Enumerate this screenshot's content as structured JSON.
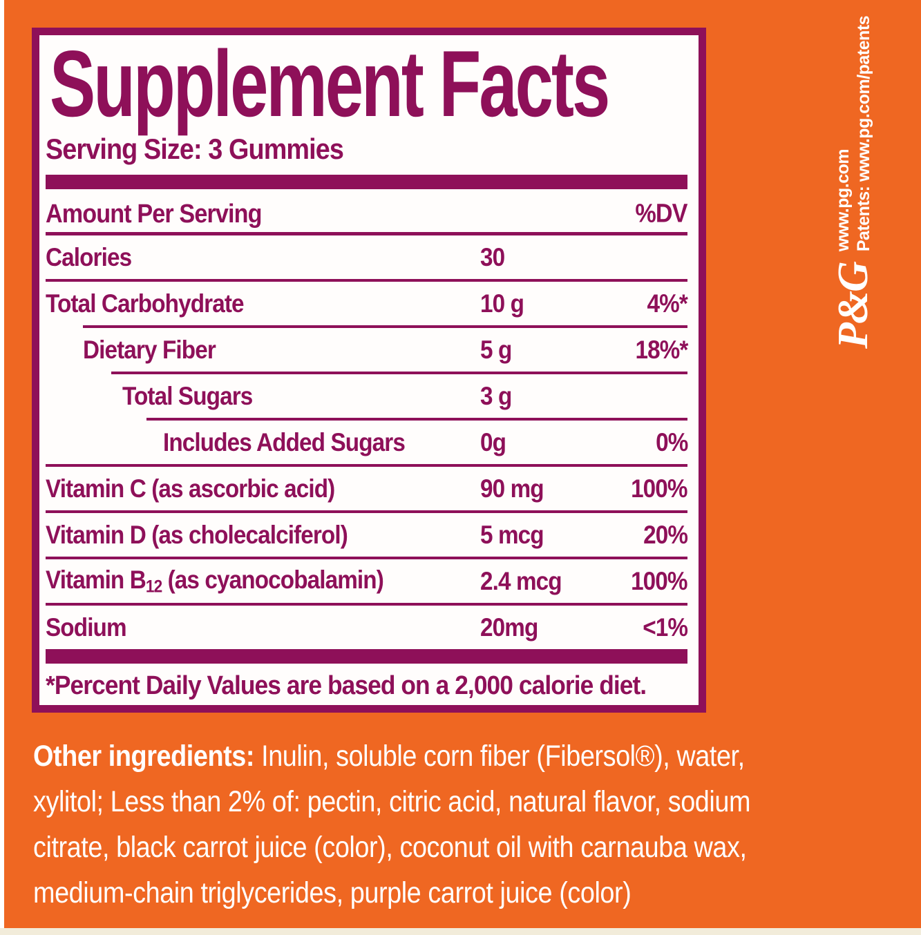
{
  "colors": {
    "background_orange": "#EF6722",
    "label_magenta": "#8E1059",
    "panel_white": "#FFFDFC",
    "text_white": "#FFFFFF",
    "bottom_strip_cream": "#F2ECDA"
  },
  "label": {
    "title": "Supplement Facts",
    "serving_size": "Serving Size: 3 Gummies",
    "columns": {
      "amount_header": "Amount Per Serving",
      "dv_header": "%DV"
    },
    "rows": [
      {
        "label": "Calories",
        "amount": "30",
        "dv": "",
        "label_indent": 0,
        "divider_indent": 0
      },
      {
        "label": "Total Carbohydrate",
        "amount": "10 g",
        "dv": "4%*",
        "label_indent": 0,
        "divider_indent": 0
      },
      {
        "label": "Dietary Fiber",
        "amount": "5 g",
        "dv": "18%*",
        "label_indent": 54,
        "divider_indent": 54
      },
      {
        "label": "Total Sugars",
        "amount": "3 g",
        "dv": "",
        "label_indent": 111,
        "divider_indent": 95
      },
      {
        "label": "Includes Added Sugars",
        "amount": "0g",
        "dv": "0%",
        "label_indent": 170,
        "divider_indent": 146
      },
      {
        "label": "Vitamin C (as ascorbic acid)",
        "amount": "90 mg",
        "dv": "100%",
        "label_indent": 0,
        "divider_indent": 0
      },
      {
        "label": "Vitamin D (as cholecalciferol)",
        "amount": "5 mcg",
        "dv": "20%",
        "label_indent": 0,
        "divider_indent": 0
      },
      {
        "label_pre": "Vitamin B",
        "label_sub": "12",
        "label_post": " (as cyanocobalamin)",
        "amount": "2.4 mcg",
        "dv": "100%",
        "label_indent": 0,
        "divider_indent": 0
      },
      {
        "label": "Sodium",
        "amount": "20mg",
        "dv": "<1%",
        "label_indent": 0,
        "divider_indent": 0
      }
    ],
    "footnote": "*Percent Daily Values are based on a 2,000 calorie diet."
  },
  "ingredients": {
    "lead": "Other ingredients:",
    "line1_rest": " Inulin, soluble corn fiber (Fibersol®), water,",
    "lines": [
      "xylitol; Less than 2% of: pectin, citric acid, natural flavor, sodium",
      "citrate, black carrot juice (color), coconut oil with carnauba wax,",
      "medium-chain triglycerides, purple carrot juice (color)"
    ]
  },
  "branding": {
    "logo_text": "P&G",
    "website": "www.pg.com",
    "patents": "Patents: www.pg.com/patents"
  }
}
